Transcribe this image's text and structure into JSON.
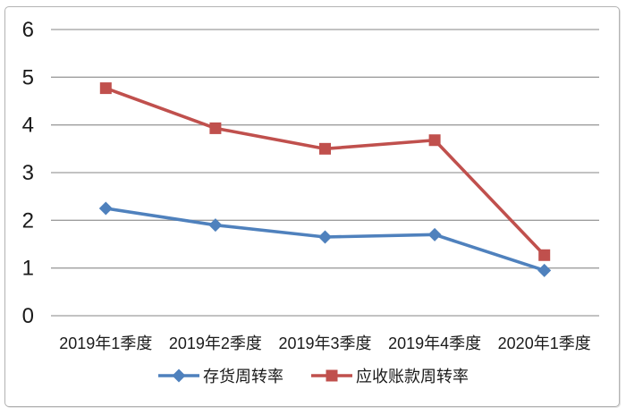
{
  "chart_data": {
    "type": "line",
    "title": "",
    "xlabel": "",
    "ylabel": "",
    "categories": [
      "2019年1季度",
      "2019年2季度",
      "2019年3季度",
      "2019年4季度",
      "2020年1季度"
    ],
    "series": [
      {
        "name": "存货周转率",
        "color": "#4F81BD",
        "marker": "diamond",
        "values": [
          2.25,
          1.9,
          1.65,
          1.7,
          0.95
        ]
      },
      {
        "name": "应收账款周转率",
        "color": "#C0504D",
        "marker": "square",
        "values": [
          4.77,
          3.93,
          3.5,
          3.68,
          1.27
        ]
      }
    ],
    "ylim": [
      0,
      6
    ],
    "yticks": [
      0,
      1,
      2,
      3,
      4,
      5,
      6
    ],
    "grid": true,
    "legend_position": "bottom",
    "colors": {
      "gridline": "#9e9e9e",
      "text": "#1a1a1a",
      "frame_border": "#b3b3b3",
      "background": "#ffffff"
    }
  }
}
